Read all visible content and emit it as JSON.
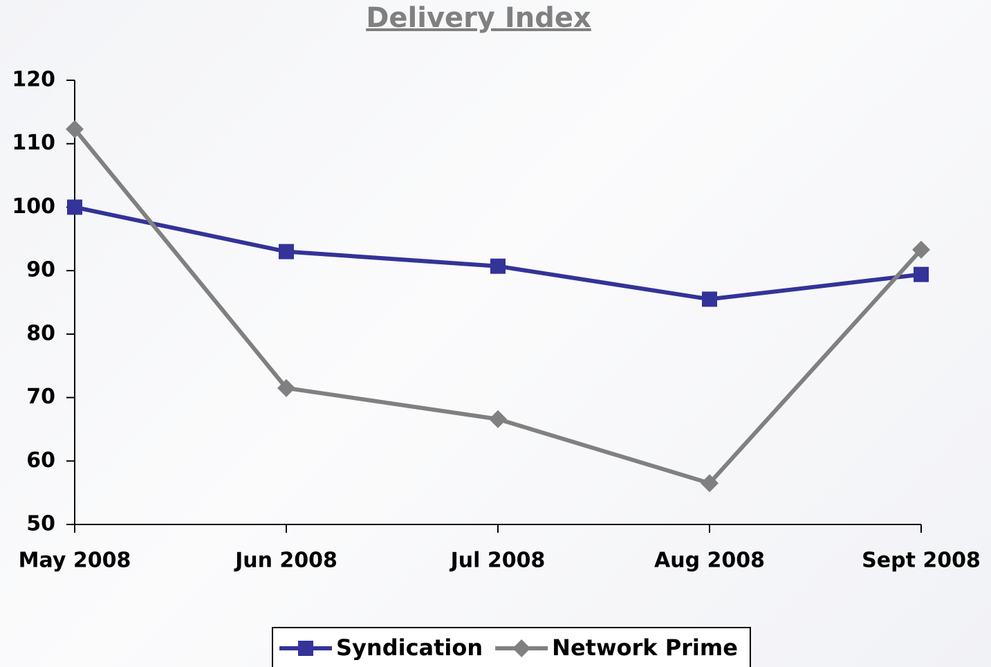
{
  "chart_data": {
    "type": "line",
    "title": "Delivery Index",
    "categories": [
      "May 2008",
      "Jun 2008",
      "Jul 2008",
      "Aug 2008",
      "Sept 2008"
    ],
    "series": [
      {
        "name": "Syndication",
        "color": "#333399",
        "marker": "square",
        "values": [
          100,
          93,
          90.7,
          85.5,
          89.4
        ]
      },
      {
        "name": "Network Prime",
        "color": "#808080",
        "marker": "diamond",
        "values": [
          112.3,
          71.5,
          66.6,
          56.5,
          93.3
        ]
      }
    ],
    "ylim": [
      50,
      120
    ],
    "yticks": [
      50,
      60,
      70,
      80,
      90,
      100,
      110,
      120
    ],
    "grid": false,
    "legend": "bottom"
  }
}
